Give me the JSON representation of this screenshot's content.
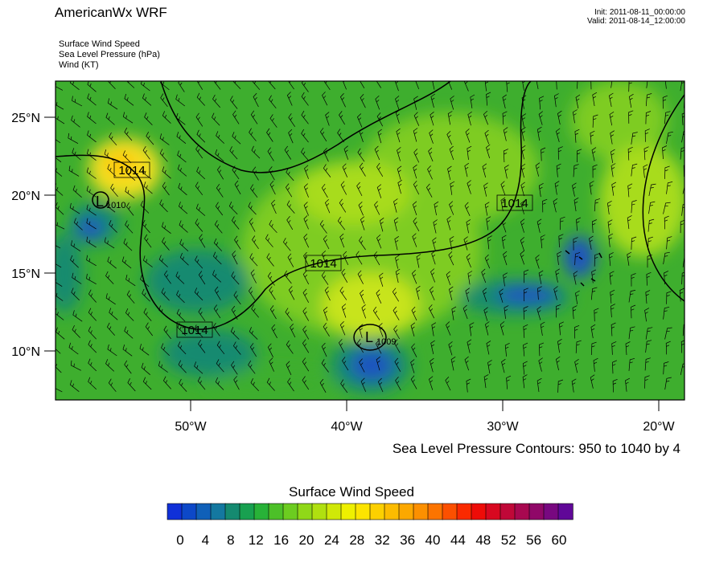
{
  "header": {
    "title": "AmericanWx WRF",
    "init": "Init: 2011-08-11_00:00:00",
    "valid": "Valid: 2011-08-14_12:00:00"
  },
  "fields": [
    "Surface Wind Speed",
    "Sea Level Pressure   (hPa)",
    "Wind   (KT)"
  ],
  "map": {
    "lat_labels": [
      "25°N",
      "20°N",
      "15°N",
      "10°N"
    ],
    "lon_labels": [
      "50°W",
      "40°W",
      "30°W",
      "20°W"
    ],
    "isobar_labels": [
      "1014",
      "1014",
      "1014",
      "1014"
    ],
    "lows": [
      {
        "symbol": "L",
        "value": "1010"
      },
      {
        "symbol": "L",
        "value": "1009"
      }
    ]
  },
  "contour_note": "Sea Level Pressure Contours: 950 to 1040 by 4",
  "colorbar": {
    "title": "Surface Wind Speed",
    "ticks": [
      "0",
      "4",
      "8",
      "12",
      "16",
      "20",
      "24",
      "28",
      "32",
      "36",
      "40",
      "44",
      "48",
      "52",
      "56",
      "60"
    ],
    "colors": [
      "#1030d8",
      "#0d48c8",
      "#1060b8",
      "#1478a0",
      "#158a70",
      "#18a050",
      "#28b238",
      "#4cc028",
      "#6ccc20",
      "#90d818",
      "#b0e010",
      "#d0e808",
      "#eef000",
      "#fce400",
      "#fcd000",
      "#fcbc00",
      "#fca800",
      "#fc9000",
      "#fc7400",
      "#fc5000",
      "#fa2a00",
      "#ee0c08",
      "#d80820",
      "#c00838",
      "#a80850",
      "#900868",
      "#780880",
      "#600898"
    ]
  },
  "colors": {
    "land_green": "#3eae2e",
    "light_green": "#7ecc22",
    "yellow": "#e8e43a",
    "blue": "#1a52c0",
    "teal": "#178a70"
  }
}
